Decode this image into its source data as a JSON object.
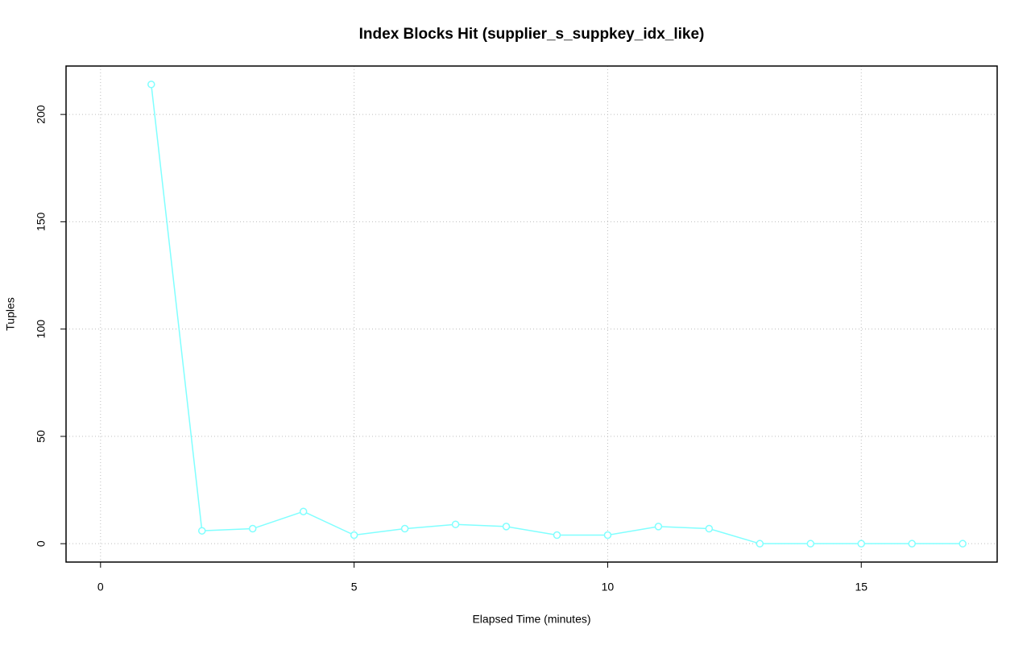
{
  "chart_data": {
    "type": "line",
    "title": "Index Blocks Hit (supplier_s_suppkey_idx_like)",
    "x_label": "Elapsed Time (minutes)",
    "y_label": "Tuples",
    "x": [
      1,
      2,
      3,
      4,
      5,
      6,
      7,
      8,
      9,
      10,
      11,
      12,
      13,
      14,
      15,
      16,
      17
    ],
    "series": [
      {
        "name": "supplier_s_suppkey_idx_like",
        "color": "#80ffff",
        "values": [
          214,
          6,
          7,
          15,
          4,
          7,
          9,
          8,
          4,
          4,
          8,
          7,
          0,
          0,
          0,
          0,
          0
        ]
      }
    ],
    "xlim": [
      -0.68,
      17.68
    ],
    "ylim": [
      -8.56,
      222.56
    ],
    "xticks": [
      0,
      5,
      10,
      15
    ],
    "yticks": [
      0,
      50,
      100,
      150,
      200
    ],
    "grid": true
  }
}
